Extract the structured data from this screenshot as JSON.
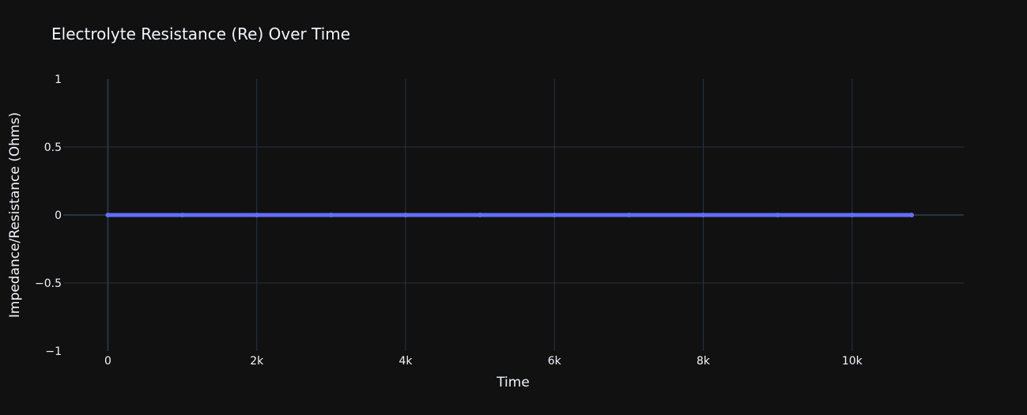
{
  "chart_data": {
    "type": "line",
    "title": "Electrolyte Resistance (Re) Over Time",
    "xlabel": "Time",
    "ylabel": "Impedance/Resistance (Ohms)",
    "xlim": [
      -600,
      11500
    ],
    "ylim": [
      -1,
      1
    ],
    "x_ticks": [
      0,
      2000,
      4000,
      6000,
      8000,
      10000
    ],
    "x_tick_labels": [
      "0",
      "2k",
      "4k",
      "6k",
      "8k",
      "10k"
    ],
    "y_ticks": [
      1,
      0.5,
      0,
      -0.5,
      -1
    ],
    "y_tick_labels": [
      "1",
      "0.5",
      "0",
      "−0.5",
      "−1"
    ],
    "grid": true,
    "series": [
      {
        "color": "#636efa",
        "x": [
          0,
          1000,
          2000,
          3000,
          4000,
          5000,
          6000,
          7000,
          8000,
          9000,
          10000,
          10800
        ],
        "y": [
          0,
          0,
          0,
          0,
          0,
          0,
          0,
          0,
          0,
          0,
          0,
          0
        ]
      }
    ]
  },
  "colors": {
    "background": "#111111",
    "grid": "#283442",
    "zeroline": "#283442",
    "text": "#f2f5fa",
    "series": "#636efa"
  }
}
